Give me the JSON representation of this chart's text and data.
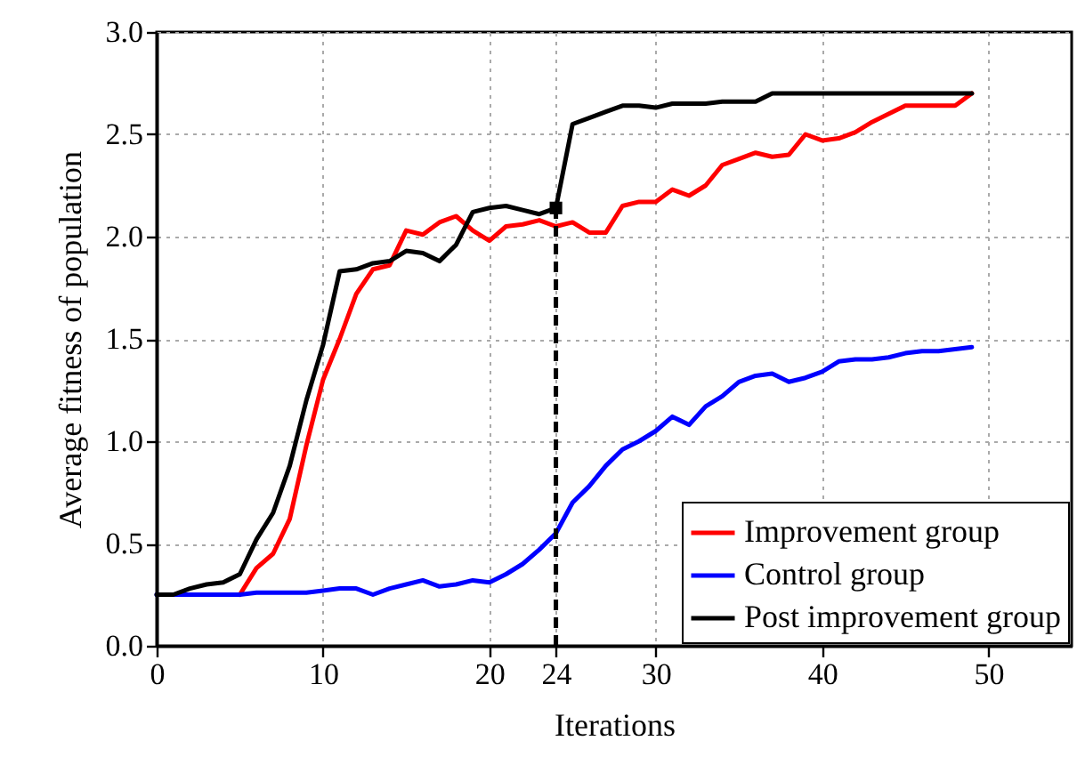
{
  "chart_data": {
    "type": "line",
    "xlabel": "Iterations",
    "ylabel": "Average fitness of population",
    "x": [
      0,
      1,
      2,
      3,
      4,
      5,
      6,
      7,
      8,
      9,
      10,
      11,
      12,
      13,
      14,
      15,
      16,
      17,
      18,
      19,
      20,
      21,
      22,
      23,
      24,
      25,
      26,
      27,
      28,
      29,
      30,
      31,
      32,
      33,
      34,
      35,
      36,
      37,
      38,
      39,
      40,
      41,
      42,
      43,
      44,
      45,
      46,
      47,
      48,
      49
    ],
    "series": [
      {
        "name": "Improvement group",
        "color": "#ff0000",
        "values": [
          null,
          null,
          null,
          null,
          null,
          0.25,
          0.38,
          0.45,
          0.62,
          0.98,
          1.3,
          1.5,
          1.72,
          1.84,
          1.86,
          2.03,
          2.01,
          2.07,
          2.1,
          2.03,
          1.98,
          2.05,
          2.06,
          2.08,
          2.05,
          2.07,
          2.02,
          2.02,
          2.15,
          2.17,
          2.17,
          2.23,
          2.2,
          2.25,
          2.35,
          2.38,
          2.41,
          2.39,
          2.4,
          2.5,
          2.47,
          2.48,
          2.51,
          2.56,
          2.6,
          2.64,
          2.64,
          2.64,
          2.64,
          2.7
        ]
      },
      {
        "name": "Control group",
        "color": "#0000ff",
        "values": [
          0.25,
          0.25,
          0.25,
          0.25,
          0.25,
          0.25,
          0.26,
          0.26,
          0.26,
          0.26,
          0.27,
          0.28,
          0.28,
          0.25,
          0.28,
          0.3,
          0.32,
          0.29,
          0.3,
          0.32,
          0.31,
          0.35,
          0.4,
          0.47,
          0.55,
          0.7,
          0.78,
          0.88,
          0.96,
          1.0,
          1.05,
          1.12,
          1.08,
          1.17,
          1.22,
          1.29,
          1.32,
          1.33,
          1.29,
          1.31,
          1.34,
          1.39,
          1.4,
          1.4,
          1.41,
          1.43,
          1.44,
          1.44,
          1.45,
          1.46
        ]
      },
      {
        "name": "Post improvement group",
        "color": "#000000",
        "values": [
          0.25,
          0.25,
          0.28,
          0.3,
          0.31,
          0.35,
          0.52,
          0.65,
          0.88,
          1.2,
          1.47,
          1.83,
          1.84,
          1.87,
          1.88,
          1.93,
          1.92,
          1.88,
          1.96,
          2.12,
          2.14,
          2.15,
          2.13,
          2.11,
          2.14,
          2.55,
          2.58,
          2.61,
          2.64,
          2.64,
          2.63,
          2.65,
          2.65,
          2.65,
          2.66,
          2.66,
          2.66,
          2.7,
          2.7,
          2.7,
          2.7,
          2.7,
          2.7,
          2.7,
          2.7,
          2.7,
          2.7,
          2.7,
          2.7,
          2.7
        ]
      }
    ],
    "xlim": [
      0,
      55
    ],
    "xticks": [
      0,
      10,
      20,
      24,
      30,
      40,
      50
    ],
    "ylim": [
      0,
      3
    ],
    "yticks": [
      {
        "value": 0,
        "label": "0.0"
      },
      {
        "value": 0.5,
        "label": "0.5"
      },
      {
        "value": 1,
        "label": "1.0"
      },
      {
        "value": 1.5,
        "label": "1.5"
      },
      {
        "value": 2,
        "label": "2.0"
      },
      {
        "value": 2.5,
        "label": "2.5"
      },
      {
        "value": 3,
        "label": "3.0"
      }
    ],
    "ref_lines": [
      {
        "axis": "x",
        "value": 24,
        "color": "#000000",
        "line_style": "dashed"
      }
    ],
    "grid": true,
    "legend": "bottom right",
    "line_style": "solid"
  }
}
